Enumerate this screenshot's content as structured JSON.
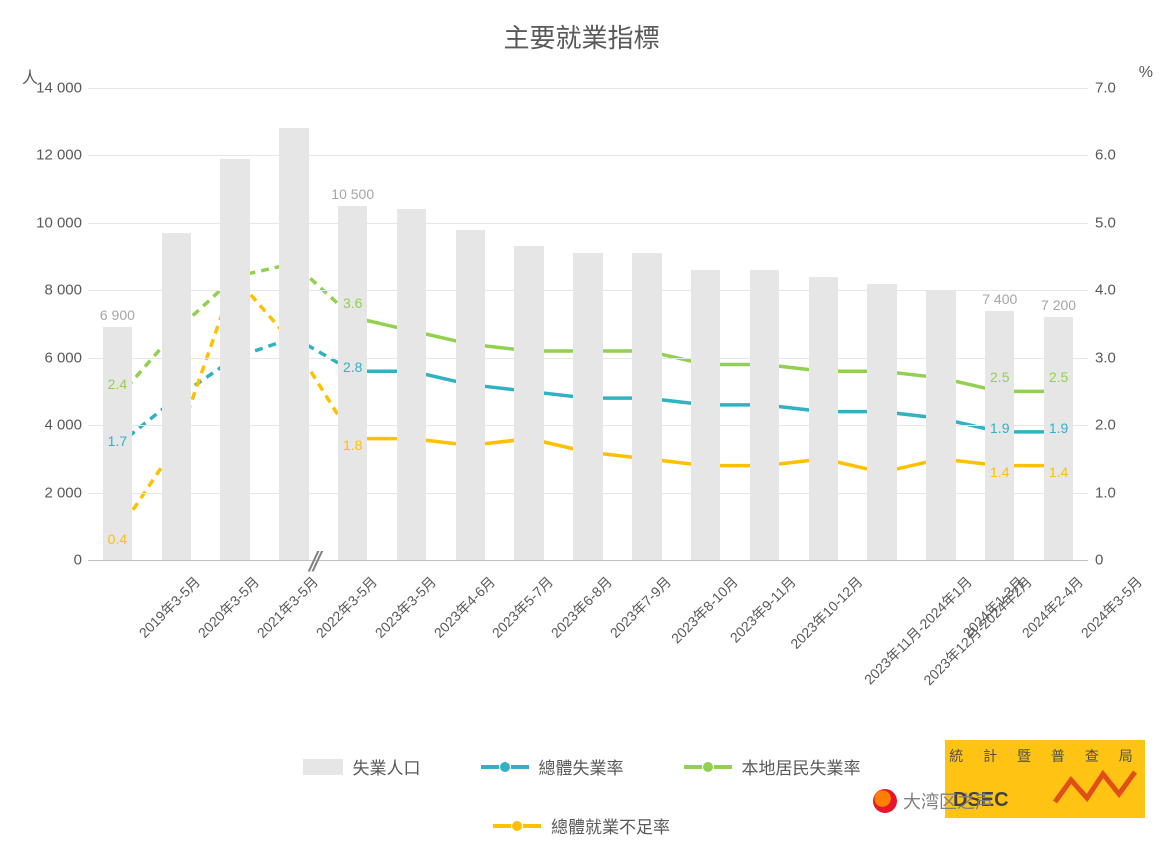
{
  "chart": {
    "title": "主要就業指標",
    "y_left": {
      "unit": "人",
      "max": 14000,
      "step": 2000,
      "labels": [
        "0",
        "2 000",
        "4 000",
        "6 000",
        "8 000",
        "10 000",
        "12 000",
        "14 000"
      ]
    },
    "y_right": {
      "unit": "%",
      "max": 7.0,
      "step": 1.0,
      "labels": [
        "0",
        "1.0",
        "2.0",
        "3.0",
        "4.0",
        "5.0",
        "6.0",
        "7.0"
      ]
    },
    "categories": [
      "2019年3-5月",
      "2020年3-5月",
      "2021年3-5月",
      "2022年3-5月",
      "2023年3-5月",
      "2023年4-6月",
      "2023年5-7月",
      "2023年6-8月",
      "2023年7-9月",
      "2023年8-10月",
      "2023年9-11月",
      "2023年10-12月",
      "2023年11月-2024年1月",
      "2023年12月-2024年2月",
      "2024年1-3月",
      "2024年2-4月",
      "2024年3-5月"
    ],
    "axis_break_after_index": 3,
    "bars": {
      "name": "失業人口",
      "color": "#e6e6e6",
      "values": [
        6900,
        9700,
        11900,
        12800,
        10500,
        10400,
        9800,
        9300,
        9100,
        9100,
        8600,
        8600,
        8400,
        8200,
        8000,
        7400,
        7200
      ],
      "shown_labels": {
        "0": "6 900",
        "4": "10 500",
        "15": "7 400",
        "16": "7 200"
      },
      "label_color": "#a6a6a6",
      "bar_width_ratio": 0.5
    },
    "lines": [
      {
        "name": "本地居民失業率",
        "color": "#92d050",
        "marker_fill": "#92d050",
        "values": [
          2.4,
          3.4,
          4.2,
          4.4,
          3.6,
          3.4,
          3.2,
          3.1,
          3.1,
          3.1,
          2.9,
          2.9,
          2.8,
          2.8,
          2.7,
          2.5,
          2.5
        ],
        "shown_labels": {
          "0": "2.4",
          "4": "3.6",
          "15": "2.5",
          "16": "2.5"
        },
        "dash_before_break": true
      },
      {
        "name": "總體失業率",
        "color": "#31b2c2",
        "marker_fill": "#31b2c2",
        "values": [
          1.7,
          2.4,
          3.0,
          3.3,
          2.8,
          2.8,
          2.6,
          2.5,
          2.4,
          2.4,
          2.3,
          2.3,
          2.2,
          2.2,
          2.1,
          1.9,
          1.9
        ],
        "shown_labels": {
          "0": "1.7",
          "4": "2.8",
          "15": "1.9",
          "16": "1.9"
        },
        "dash_before_break": true
      },
      {
        "name": "總體就業不足率",
        "color": "#ffc000",
        "marker_fill": "#ffc000",
        "values": [
          0.4,
          1.7,
          4.2,
          3.2,
          1.8,
          1.8,
          1.7,
          1.8,
          1.6,
          1.5,
          1.4,
          1.4,
          1.5,
          1.3,
          1.5,
          1.4,
          1.4
        ],
        "shown_labels": {
          "0": "0.4",
          "4": "1.8",
          "15": "1.4",
          "16": "1.4"
        },
        "dash_before_break": true
      }
    ],
    "legend": [
      "失業人口",
      "總體失業率",
      "本地居民失業率",
      "總體就業不足率"
    ],
    "typography": {
      "title_fontsize": 26,
      "axis_fontsize": 15,
      "label_fontsize": 14,
      "legend_fontsize": 17
    },
    "line_width": 3.5,
    "marker_radius": 5,
    "background_color": "#ffffff",
    "grid_color": "#e6e6e6"
  },
  "watermark": {
    "org_top": "統 計 暨 普 查 局",
    "org_bottom": "DSEC",
    "logo_color": "#e04006"
  },
  "weibo": {
    "text": "大湾区之声"
  }
}
